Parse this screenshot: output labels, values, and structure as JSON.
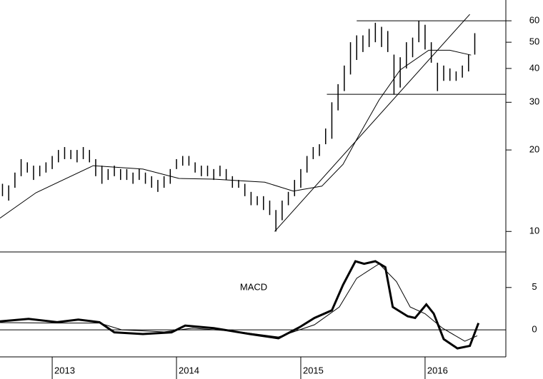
{
  "chart_data": [
    {
      "type": "range-bar",
      "log_scale": true,
      "xlim": [
        2012.58,
        2016.65
      ],
      "ylim": [
        8.4,
        71.6
      ],
      "yticks": [
        10,
        20,
        30,
        40,
        50,
        60
      ],
      "x": [
        2012.6,
        2012.65,
        2012.7,
        2012.75,
        2012.8,
        2012.85,
        2012.9,
        2012.95,
        2013.0,
        2013.05,
        2013.1,
        2013.15,
        2013.2,
        2013.25,
        2013.3,
        2013.35,
        2013.4,
        2013.45,
        2013.5,
        2013.55,
        2013.6,
        2013.65,
        2013.7,
        2013.75,
        2013.8,
        2013.85,
        2013.9,
        2013.95,
        2014.0,
        2014.05,
        2014.1,
        2014.15,
        2014.2,
        2014.25,
        2014.3,
        2014.35,
        2014.4,
        2014.45,
        2014.5,
        2014.55,
        2014.6,
        2014.65,
        2014.7,
        2014.75,
        2014.8,
        2014.85,
        2014.9,
        2014.95,
        2015.0,
        2015.05,
        2015.1,
        2015.15,
        2015.2,
        2015.25,
        2015.3,
        2015.35,
        2015.4,
        2015.45,
        2015.5,
        2015.55,
        2015.6,
        2015.65,
        2015.7,
        2015.75,
        2015.8,
        2015.85,
        2015.9,
        2015.95,
        2016.0,
        2016.05,
        2016.1,
        2016.15,
        2016.2,
        2016.25,
        2016.3,
        2016.35,
        2016.4
      ],
      "low": [
        13.5,
        13,
        14.5,
        16,
        16.5,
        15.5,
        16,
        16.5,
        17,
        18,
        18.5,
        18.5,
        18,
        18.5,
        18,
        16,
        15,
        15.5,
        16,
        15.5,
        15.5,
        15,
        15.5,
        15,
        14.5,
        14,
        14.5,
        15,
        17,
        17.5,
        17.5,
        16.5,
        16,
        16,
        15.5,
        16,
        15.5,
        14.5,
        14.5,
        13.5,
        12.5,
        12.5,
        12,
        11.5,
        10,
        11,
        12.5,
        13.5,
        14.5,
        16.5,
        18.5,
        19,
        21,
        22,
        28,
        33,
        38,
        43,
        46,
        48,
        50,
        48,
        46,
        32,
        34,
        40,
        44,
        50,
        47,
        42,
        33,
        36,
        36,
        36,
        37,
        39,
        45
      ],
      "high": [
        15,
        14.8,
        16.5,
        18.5,
        18,
        17.5,
        17.5,
        18,
        19,
        20,
        20.5,
        20,
        20,
        20.5,
        20,
        18.5,
        17.5,
        17,
        17.5,
        17,
        17,
        16.5,
        17,
        16.5,
        16,
        15.5,
        16,
        17,
        18.5,
        19,
        19,
        18,
        17.5,
        17.5,
        17,
        17.5,
        17,
        16,
        15.5,
        15,
        14,
        13.5,
        13.5,
        13,
        12,
        13,
        14,
        15.5,
        17,
        19,
        20.5,
        21,
        24,
        30,
        35,
        41,
        50,
        53,
        53,
        56,
        59,
        57,
        55,
        45,
        44,
        50,
        52,
        60,
        58,
        50,
        42,
        41,
        40,
        39,
        41,
        45,
        54
      ],
      "ma": {
        "x": [
          2012.58,
          2012.87,
          2013.33,
          2013.73,
          2014.02,
          2014.3,
          2014.71,
          2014.94,
          2015.17,
          2015.34,
          2015.45,
          2015.63,
          2015.8,
          2016.03,
          2016.2,
          2016.37
        ],
        "values": [
          11.2,
          13.9,
          17.5,
          17,
          15.7,
          15.6,
          15.2,
          14.1,
          14.7,
          17.7,
          21.9,
          30.6,
          39.5,
          46.7,
          46.7,
          44.8
        ]
      },
      "trendlines": [
        {
          "x": [
            2014.79,
            2016.36
          ],
          "y": [
            10,
            63.4
          ]
        },
        {
          "x": [
            2015.45,
            2016.65
          ],
          "y": [
            60,
            60
          ]
        },
        {
          "x": [
            2015.21,
            2016.65
          ],
          "y": [
            32.1,
            32.1
          ]
        }
      ]
    },
    {
      "type": "line",
      "label": "MACD",
      "xlim": [
        2012.58,
        2016.65
      ],
      "ylim": [
        -3.2,
        9.2
      ],
      "yticks": [
        0,
        5
      ],
      "xticks": [
        2013,
        2014,
        2015,
        2016
      ],
      "series": [
        {
          "color": "#000000",
          "x": [
            2012.58,
            2012.81,
            2013.04,
            2013.21,
            2013.38,
            2013.5,
            2013.73,
            2013.96,
            2014.07,
            2014.3,
            2014.59,
            2014.82,
            2014.99,
            2015.11,
            2015.25,
            2015.34,
            2015.44,
            2015.51,
            2015.6,
            2015.68,
            2015.74,
            2015.86,
            2015.92,
            2016.01,
            2016.07,
            2016.15,
            2016.26,
            2016.36,
            2016.43
          ],
          "values": [
            1.0,
            1.3,
            0.9,
            1.2,
            0.9,
            -0.3,
            -0.5,
            -0.3,
            0.5,
            0.2,
            -0.5,
            -1.0,
            0.3,
            1.4,
            2.3,
            5.3,
            8.1,
            7.8,
            8.1,
            7.4,
            2.7,
            1.6,
            1.4,
            3.0,
            1.9,
            -1.1,
            -2.2,
            -1.9,
            0.8
          ]
        },
        {
          "color": "#000000",
          "x": [
            2012.58,
            2013.04,
            2013.38,
            2013.56,
            2013.9,
            2014.13,
            2014.48,
            2014.82,
            2015.11,
            2015.31,
            2015.45,
            2015.63,
            2015.77,
            2015.88,
            2016.0,
            2016.14,
            2016.32,
            2016.42
          ],
          "values": [
            0.85,
            0.8,
            0.8,
            0,
            -0.25,
            0.2,
            -0.2,
            -0.85,
            0.6,
            2.7,
            6.1,
            7.8,
            5.7,
            2.7,
            1.9,
            0.2,
            -1.35,
            -0.7
          ]
        }
      ]
    }
  ]
}
